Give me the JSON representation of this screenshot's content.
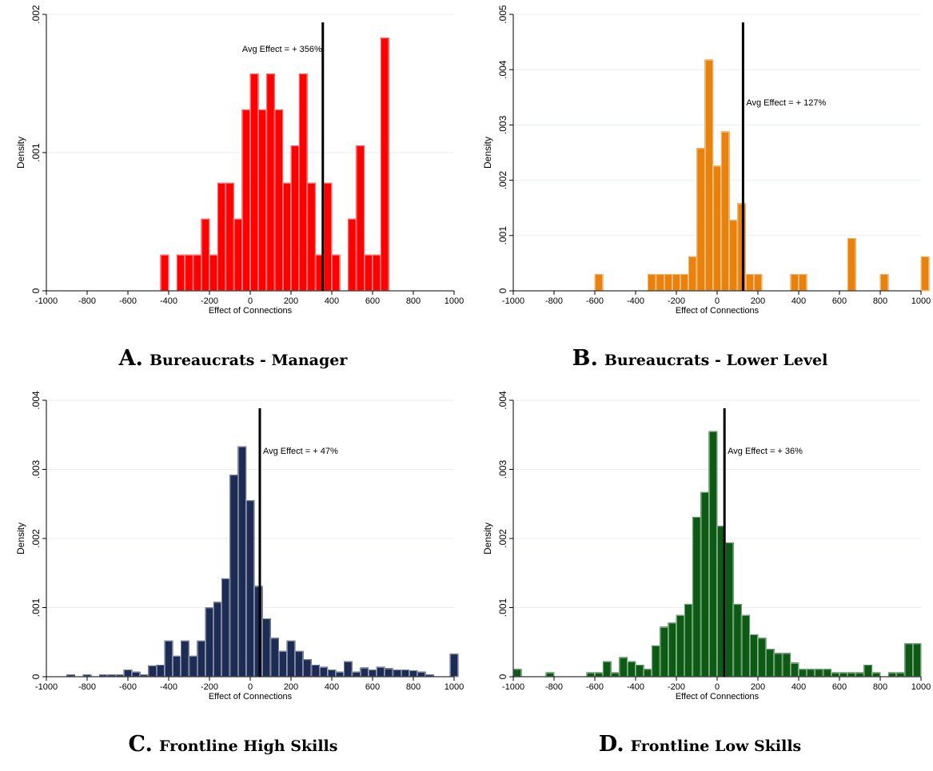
{
  "chart_data": [
    {
      "type": "bar",
      "panel_letter": "A.",
      "title": "Bureaucrats - Manager",
      "xlabel": "Effect of Connections",
      "ylabel": "Density",
      "xlim": [
        -1000,
        1000
      ],
      "ylim": [
        0,
        0.002
      ],
      "xticks": [
        -1000,
        -800,
        -600,
        -400,
        -200,
        0,
        200,
        400,
        600,
        800,
        1000
      ],
      "yticks": [
        0,
        0.001,
        0.002
      ],
      "ytick_labels": [
        "0",
        ".001",
        ".002"
      ],
      "bin_width": 40,
      "bins_x": [
        -420,
        -340,
        -300,
        -260,
        -220,
        -180,
        -140,
        -100,
        -60,
        -20,
        20,
        60,
        100,
        140,
        180,
        220,
        260,
        300,
        340,
        380,
        420,
        500,
        540,
        580,
        620,
        660,
        740,
        900,
        980
      ],
      "values": [
        0.00026,
        0.00026,
        0.00026,
        0.00026,
        0.00052,
        0.00026,
        0.00078,
        0.00078,
        0.00052,
        0.00131,
        0.00157,
        0.00131,
        0.00157,
        0.00131,
        0.00078,
        0.00105,
        0.00157,
        0.00078,
        0.00026,
        0.00078,
        0.00026,
        0.00052,
        0.00105,
        0.00026,
        0.00026,
        0.00183,
        0.0,
        0.0,
        0.0
      ],
      "avg_line_x": 356,
      "annotation": "Avg Effect = + 356%",
      "color": "#ff0000"
    },
    {
      "type": "bar",
      "panel_letter": "B.",
      "title": "Bureaucrats - Lower Level",
      "xlabel": "Effect of Connections",
      "ylabel": "Density",
      "xlim": [
        -1000,
        1000
      ],
      "ylim": [
        0,
        0.005
      ],
      "xticks": [
        -1000,
        -800,
        -600,
        -400,
        -200,
        0,
        200,
        400,
        600,
        800,
        1000
      ],
      "yticks": [
        0,
        0.001,
        0.002,
        0.003,
        0.004,
        0.005
      ],
      "ytick_labels": [
        "0",
        ".001",
        ".002",
        ".003",
        ".004",
        ".005"
      ],
      "bin_width": 40,
      "bins_x": [
        -580,
        -320,
        -280,
        -240,
        -200,
        -160,
        -120,
        -80,
        -40,
        0,
        40,
        80,
        120,
        160,
        200,
        380,
        420,
        660,
        820,
        1020
      ],
      "values": [
        0.0003,
        0.0003,
        0.0003,
        0.0003,
        0.0003,
        0.0003,
        0.00062,
        0.00258,
        0.00418,
        0.00226,
        0.00288,
        0.00128,
        0.00158,
        0.0003,
        0.0003,
        0.0003,
        0.0003,
        0.00095,
        0.0003,
        0.00062
      ],
      "avg_line_x": 127,
      "annotation": "Avg Effect = + 127%",
      "color": "#e8820c"
    },
    {
      "type": "bar",
      "panel_letter": "C.",
      "title": "Frontline High Skills",
      "xlabel": "Effect of Connections",
      "ylabel": "Density",
      "xlim": [
        -1000,
        1000
      ],
      "ylim": [
        0,
        0.004
      ],
      "xticks": [
        -1000,
        -800,
        -600,
        -400,
        -200,
        0,
        200,
        400,
        600,
        800,
        1000
      ],
      "yticks": [
        0,
        0.001,
        0.002,
        0.003,
        0.004
      ],
      "ytick_labels": [
        "0",
        ".001",
        ".002",
        ".003",
        ".004"
      ],
      "bin_width": 40,
      "bins_x": [
        -880,
        -800,
        -720,
        -680,
        -640,
        -600,
        -560,
        -520,
        -480,
        -440,
        -400,
        -360,
        -320,
        -280,
        -240,
        -200,
        -160,
        -120,
        -80,
        -40,
        0,
        40,
        80,
        120,
        160,
        200,
        240,
        280,
        320,
        360,
        400,
        440,
        480,
        520,
        560,
        600,
        640,
        680,
        720,
        760,
        800,
        840,
        880,
        1000
      ],
      "values": [
        3e-05,
        3e-05,
        3e-05,
        3e-05,
        3e-05,
        0.0001,
        7e-05,
        3e-05,
        0.00016,
        0.00017,
        0.00052,
        0.0003,
        0.00052,
        0.0003,
        0.00052,
        0.001,
        0.00108,
        0.00142,
        0.00292,
        0.00333,
        0.00255,
        0.00131,
        0.00084,
        0.00056,
        0.00037,
        0.00052,
        0.00037,
        0.00025,
        0.00017,
        0.00014,
        0.0001,
        7e-05,
        0.00022,
        7e-05,
        0.00013,
        0.0001,
        0.00014,
        0.00012,
        0.0001,
        0.0001,
        9e-05,
        7e-05,
        3e-05,
        0.00033
      ],
      "avg_line_x": 47,
      "annotation": "Avg Effect = +  47%",
      "color": "#1c2c54"
    },
    {
      "type": "bar",
      "panel_letter": "D.",
      "title": "Frontline Low Skills",
      "xlabel": "Effect of Connections",
      "ylabel": "Density",
      "xlim": [
        -1000,
        1000
      ],
      "ylim": [
        0,
        0.004
      ],
      "xticks": [
        -1000,
        -800,
        -600,
        -400,
        -200,
        0,
        200,
        400,
        600,
        800,
        1000
      ],
      "yticks": [
        0,
        0.001,
        0.002,
        0.003,
        0.004
      ],
      "ytick_labels": [
        "0",
        ".001",
        ".002",
        ".003",
        ".004"
      ],
      "bin_width": 40,
      "bins_x": [
        -980,
        -820,
        -620,
        -580,
        -540,
        -500,
        -460,
        -420,
        -380,
        -340,
        -300,
        -260,
        -220,
        -180,
        -140,
        -100,
        -60,
        -20,
        20,
        60,
        100,
        140,
        180,
        220,
        260,
        300,
        340,
        380,
        420,
        460,
        500,
        540,
        580,
        620,
        660,
        700,
        740,
        780,
        860,
        900,
        940,
        980
      ],
      "values": [
        0.00011,
        6e-05,
        6e-05,
        6e-05,
        0.00022,
        6e-05,
        0.00028,
        0.00022,
        0.00017,
        0.00011,
        0.00045,
        0.00072,
        0.00078,
        0.00089,
        0.00105,
        0.00231,
        0.00267,
        0.00355,
        0.00218,
        0.00194,
        0.00105,
        0.00089,
        0.00061,
        0.00056,
        0.0004,
        0.00034,
        0.00034,
        0.0002,
        0.00011,
        0.00011,
        0.00011,
        0.00011,
        6e-05,
        6e-05,
        6e-05,
        6e-05,
        0.00017,
        6e-05,
        6e-05,
        6e-05,
        0.00048,
        0.00048
      ],
      "avg_line_x": 36,
      "annotation": "Avg Effect = +  36%",
      "color": "#0c5a14"
    }
  ]
}
